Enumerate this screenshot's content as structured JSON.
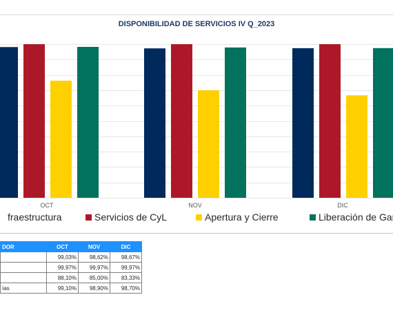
{
  "chart_data": {
    "type": "bar",
    "title": "DISPONIBILIDAD DE SERVICIOS IV Q_2023",
    "categories": [
      "OCT",
      "NOV",
      "DIC"
    ],
    "series": [
      {
        "name": "Infraestructura",
        "color": "#002a5c",
        "values": [
          99.03,
          98.62,
          98.67
        ]
      },
      {
        "name": "Servicios de CyL",
        "color": "#ad1829",
        "values": [
          99.97,
          99.97,
          99.97
        ]
      },
      {
        "name": "Apertura y Cierre",
        "color": "#ffd000",
        "values": [
          88.1,
          85.0,
          83.33
        ]
      },
      {
        "name": "Liberación de Garantías",
        "color": "#00725e",
        "values": [
          99.1,
          98.9,
          98.7
        ]
      }
    ],
    "ylim": [
      50,
      100
    ],
    "grid": true,
    "legend_position": "bottom"
  },
  "table": {
    "header": [
      "DOR",
      "OCT",
      "NOV",
      "DIC"
    ],
    "rows": [
      {
        "label": "",
        "values": [
          "99,03%",
          "98,62%",
          "98,67%"
        ]
      },
      {
        "label": "",
        "values": [
          "99,97%",
          "99,97%",
          "99,97%"
        ]
      },
      {
        "label": "",
        "values": [
          "88,10%",
          "85,00%",
          "83,33%"
        ]
      },
      {
        "label": "ías",
        "values": [
          "99,10%",
          "98,90%",
          "98,70%"
        ]
      }
    ]
  },
  "legend": {
    "labels": [
      "fraestructura",
      "Servicios de CyL",
      "Apertura y Cierre",
      "Liberación de Gara"
    ]
  }
}
